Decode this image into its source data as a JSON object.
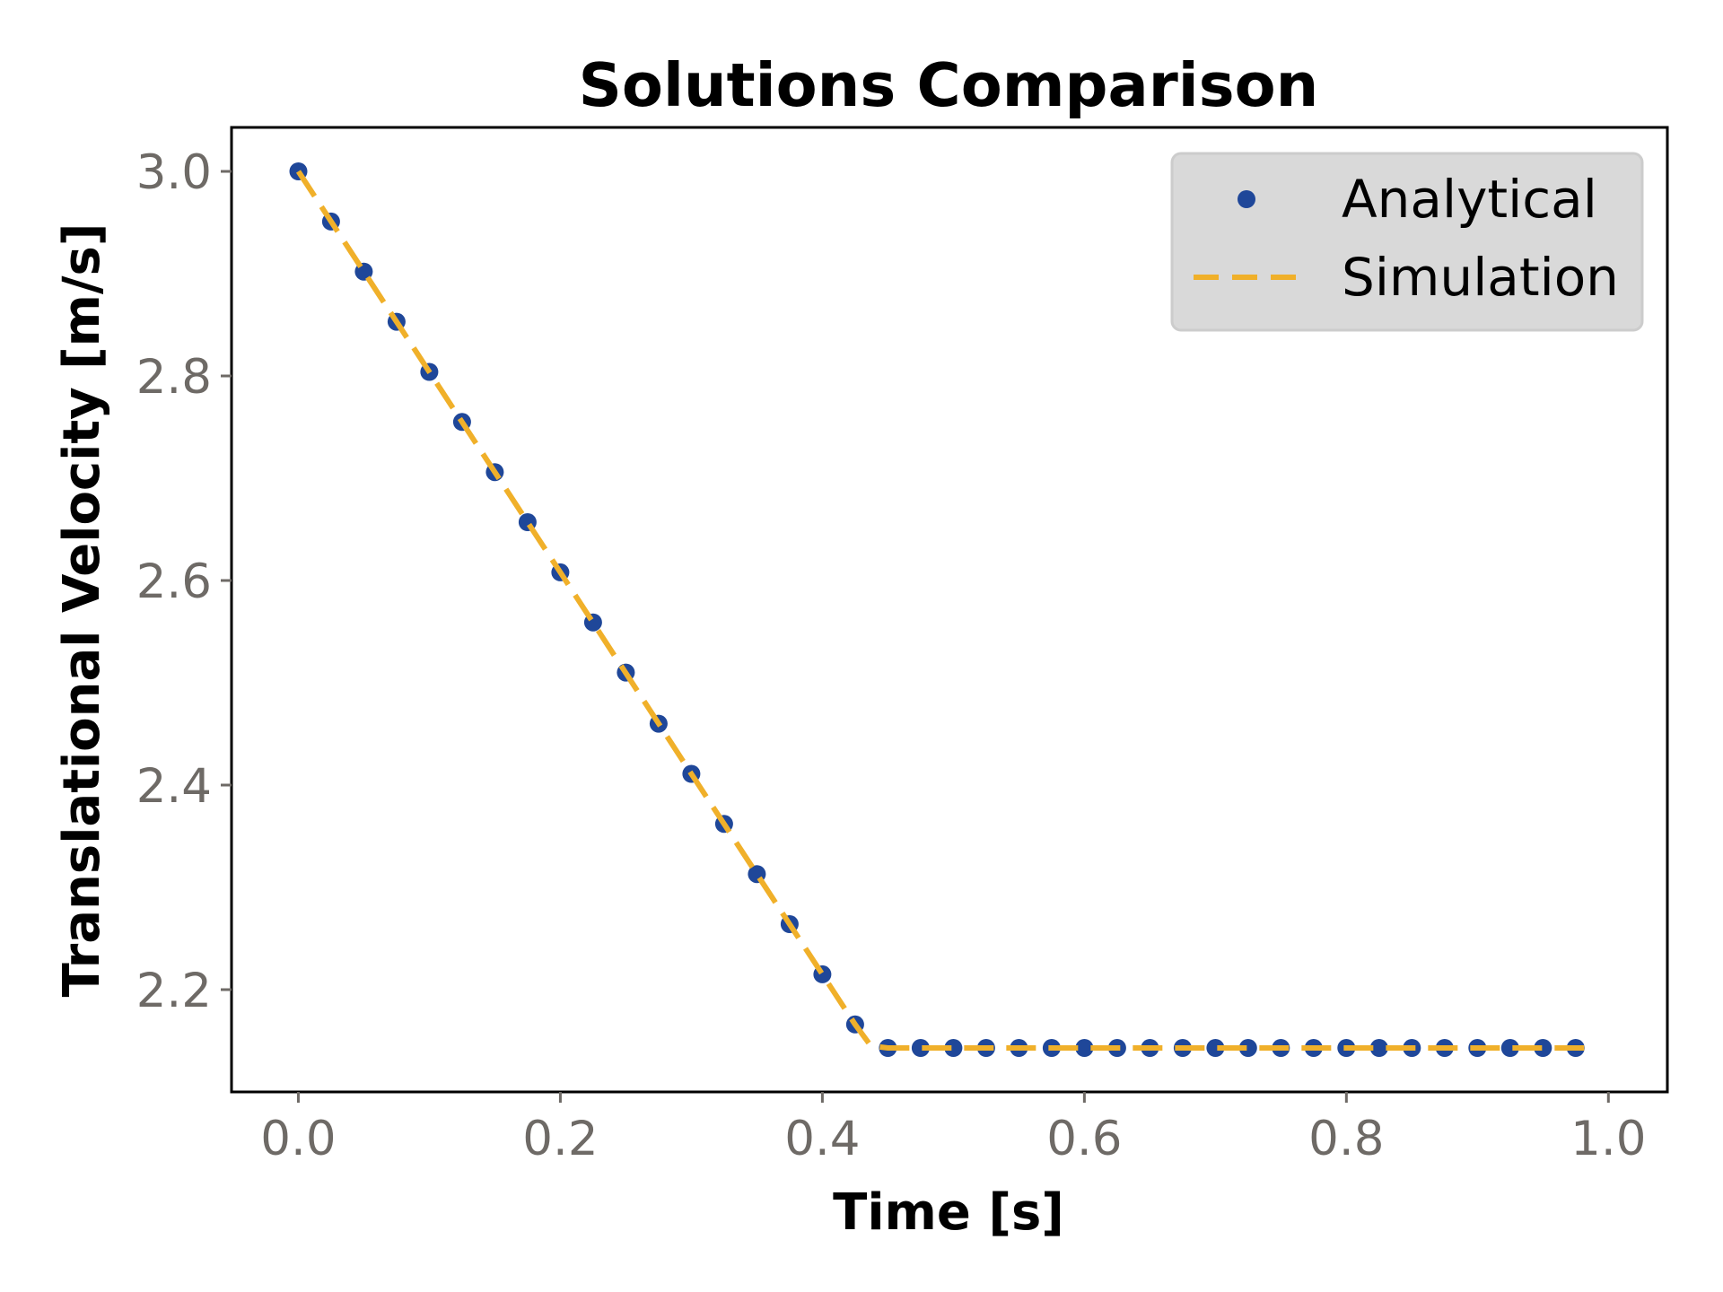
{
  "chart_data": {
    "type": "line",
    "title": "Solutions Comparison",
    "xlabel": "Time [s]",
    "ylabel": "Translational Velocity [m/s]",
    "xlim": [
      -0.051,
      1.045
    ],
    "ylim": [
      2.1,
      3.043
    ],
    "grid": false,
    "legend_position": "upper right",
    "x_ticks": [
      0.0,
      0.2,
      0.4,
      0.6,
      0.8,
      1.0
    ],
    "x_tick_labels": [
      "0.0",
      "0.2",
      "0.4",
      "0.6",
      "0.8",
      "1.0"
    ],
    "y_ticks": [
      2.2,
      2.4,
      2.6,
      2.8,
      3.0
    ],
    "y_tick_labels": [
      "2.2",
      "2.4",
      "2.6",
      "2.8",
      "3.0"
    ],
    "series": [
      {
        "name": "Analytical",
        "style": "markers",
        "color": "#1f4799",
        "x": [
          0.0,
          0.025,
          0.05,
          0.075,
          0.1,
          0.125,
          0.15,
          0.175,
          0.2,
          0.225,
          0.25,
          0.275,
          0.3,
          0.325,
          0.35,
          0.375,
          0.4,
          0.425,
          0.45,
          0.475,
          0.5,
          0.525,
          0.55,
          0.575,
          0.6,
          0.625,
          0.65,
          0.675,
          0.7,
          0.725,
          0.75,
          0.775,
          0.8,
          0.825,
          0.85,
          0.875,
          0.9,
          0.925,
          0.95,
          0.975
        ],
        "values": [
          3.0,
          2.951,
          2.902,
          2.853,
          2.804,
          2.755,
          2.706,
          2.657,
          2.608,
          2.559,
          2.51,
          2.46,
          2.411,
          2.362,
          2.313,
          2.264,
          2.215,
          2.166,
          2.143,
          2.143,
          2.143,
          2.143,
          2.143,
          2.143,
          2.143,
          2.143,
          2.143,
          2.143,
          2.143,
          2.143,
          2.143,
          2.143,
          2.143,
          2.143,
          2.143,
          2.143,
          2.143,
          2.143,
          2.143,
          2.143
        ]
      },
      {
        "name": "Simulation",
        "style": "dashed-line",
        "color": "#f0b02a",
        "x": [
          0.0,
          0.1,
          0.2,
          0.3,
          0.4,
          0.425,
          0.437,
          0.45,
          0.5,
          0.6,
          0.7,
          0.8,
          0.9,
          0.99
        ],
        "values": [
          3.0,
          2.804,
          2.608,
          2.411,
          2.215,
          2.166,
          2.145,
          2.143,
          2.143,
          2.143,
          2.143,
          2.143,
          2.143,
          2.143
        ]
      }
    ]
  },
  "legend": {
    "items": [
      {
        "label": "Analytical"
      },
      {
        "label": "Simulation"
      }
    ]
  },
  "colors": {
    "analytical": "#1f4799",
    "simulation": "#f0b02a",
    "legend_bg": "#d9d9d9",
    "legend_border": "#cccccc",
    "tick_label": "#6e6a66"
  }
}
